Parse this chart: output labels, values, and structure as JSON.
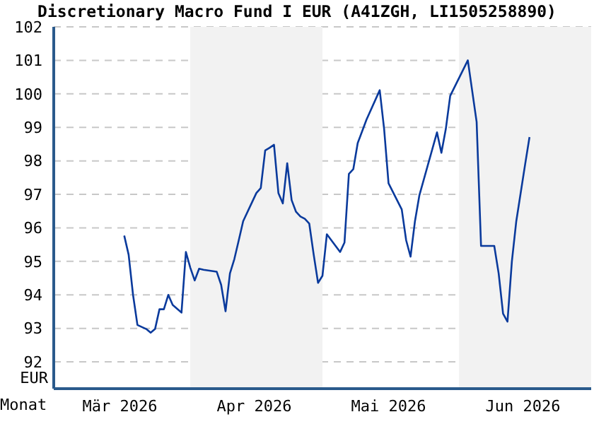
{
  "chart_data": {
    "type": "line",
    "title": "Discretionary Macro Fund I EUR (A41ZGH, LI1505258890)",
    "xlabel": "Monat",
    "ylabel": "EUR",
    "x": [
      "2026-03-17",
      "2026-03-18",
      "2026-03-19",
      "2026-03-20",
      "2026-03-22",
      "2026-03-23",
      "2026-03-24",
      "2026-03-25",
      "2026-03-26",
      "2026-03-27",
      "2026-03-28",
      "2026-03-30",
      "2026-03-31",
      "2026-04-01",
      "2026-04-02",
      "2026-04-03",
      "2026-04-04",
      "2026-04-07",
      "2026-04-08",
      "2026-04-09",
      "2026-04-10",
      "2026-04-11",
      "2026-04-12",
      "2026-04-13",
      "2026-04-15",
      "2026-04-16",
      "2026-04-17",
      "2026-04-18",
      "2026-04-19",
      "2026-04-20",
      "2026-04-21",
      "2026-04-22",
      "2026-04-23",
      "2026-04-24",
      "2026-04-25",
      "2026-04-26",
      "2026-04-27",
      "2026-04-28",
      "2026-04-29",
      "2026-04-30",
      "2026-05-01",
      "2026-05-02",
      "2026-05-05",
      "2026-05-06",
      "2026-05-07",
      "2026-05-08",
      "2026-05-09",
      "2026-05-11",
      "2026-05-14",
      "2026-05-15",
      "2026-05-16",
      "2026-05-19",
      "2026-05-20",
      "2026-05-21",
      "2026-05-22",
      "2026-05-23",
      "2026-05-27",
      "2026-05-28",
      "2026-05-29",
      "2026-05-30",
      "2026-06-03",
      "2026-06-05",
      "2026-06-06",
      "2026-06-09",
      "2026-06-10",
      "2026-06-11",
      "2026-06-12",
      "2026-06-13",
      "2026-06-14",
      "2026-06-16",
      "2026-06-17"
    ],
    "series": [
      {
        "color": "#0a3a9c",
        "values": [
          95.77,
          95.2,
          94.0,
          93.1,
          92.98,
          92.87,
          92.98,
          93.57,
          93.57,
          94.0,
          93.7,
          93.47,
          95.28,
          94.81,
          94.43,
          94.78,
          94.75,
          94.69,
          94.3,
          93.51,
          94.64,
          95.07,
          95.63,
          96.2,
          96.76,
          97.04,
          97.19,
          98.31,
          98.39,
          98.48,
          97.04,
          96.73,
          97.93,
          96.83,
          96.48,
          96.34,
          96.27,
          96.13,
          95.21,
          94.36,
          94.57,
          95.81,
          95.28,
          95.56,
          97.61,
          97.75,
          98.53,
          99.23,
          100.11,
          98.95,
          97.33,
          96.55,
          95.63,
          95.14,
          96.2,
          96.97,
          98.85,
          98.24,
          98.95,
          99.94,
          101.0,
          99.16,
          95.46,
          95.46,
          94.64,
          93.44,
          93.2,
          95.0,
          96.2,
          97.89,
          98.71
        ]
      }
    ],
    "xlim": [
      "2026-03-01",
      "2026-07-01"
    ],
    "xticks": [
      {
        "value": "2026-03-16",
        "label": "Mär 2026"
      },
      {
        "value": "2026-04-15T12:00",
        "label": "Apr 2026"
      },
      {
        "value": "2026-05-16",
        "label": "Mai 2026"
      },
      {
        "value": "2026-06-15T12:00",
        "label": "Jun 2026"
      }
    ],
    "ylim": [
      91.2,
      102
    ],
    "yticks": [
      92,
      93,
      94,
      95,
      96,
      97,
      98,
      99,
      100,
      101,
      102
    ],
    "bands": [
      {
        "axis": "x",
        "from": "2026-04-01",
        "to": "2026-05-01",
        "color": "#f2f2f2"
      },
      {
        "axis": "x",
        "from": "2026-06-01",
        "to": "2026-07-01",
        "color": "#f2f2f2"
      }
    ],
    "grid": "y",
    "legend": false,
    "marker": "none",
    "line_style": "solid"
  }
}
